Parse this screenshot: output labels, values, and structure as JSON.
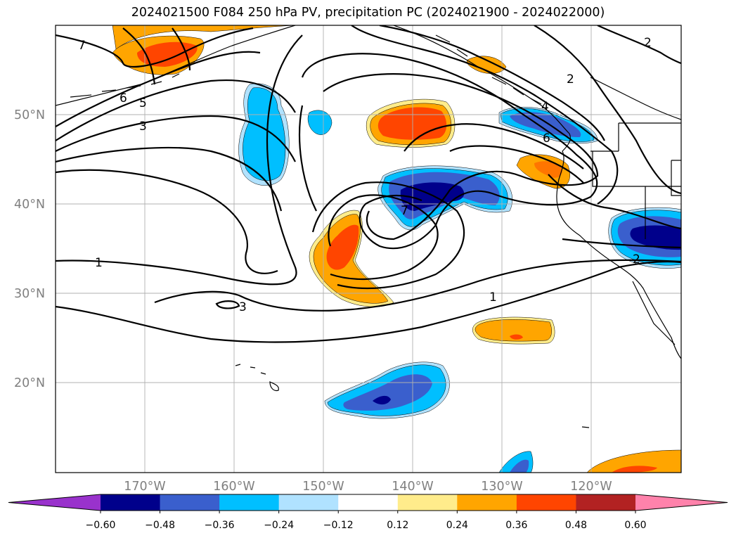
{
  "title": "2024021500 F084 250 hPa PV, precipitation PC (2024021900 - 2024022000)",
  "map": {
    "lon_range": [
      -180,
      -110
    ],
    "lat_range": [
      10,
      60
    ],
    "lat_ticks": [
      {
        "value": 20,
        "label": "20°N"
      },
      {
        "value": 30,
        "label": "30°N"
      },
      {
        "value": 40,
        "label": "40°N"
      },
      {
        "value": 50,
        "label": "50°N"
      }
    ],
    "lon_ticks": [
      {
        "value": -170,
        "label": "170°W"
      },
      {
        "value": -160,
        "label": "160°W"
      },
      {
        "value": -150,
        "label": "150°W"
      },
      {
        "value": -140,
        "label": "140°W"
      },
      {
        "value": -130,
        "label": "130°W"
      },
      {
        "value": -120,
        "label": "120°W"
      }
    ],
    "gridlines": true
  },
  "pv_contour_labels": [
    "7",
    "6",
    "5",
    "3",
    "1",
    "3",
    "1",
    "7",
    "2",
    "2",
    "4",
    "6",
    "2"
  ],
  "colorbar": {
    "colors": [
      "#9932cc",
      "#00008b",
      "#3a5fcd",
      "#00bfff",
      "#b0e2ff",
      "#ffffff",
      "#ffec8b",
      "#ffa500",
      "#ff4500",
      "#b22222",
      "#ff82ab"
    ],
    "labels": [
      "−0.60",
      "−0.48",
      "−0.36",
      "−0.24",
      "−0.12",
      "0.12",
      "0.24",
      "0.36",
      "0.48",
      "0.60"
    ],
    "extend": "both"
  }
}
